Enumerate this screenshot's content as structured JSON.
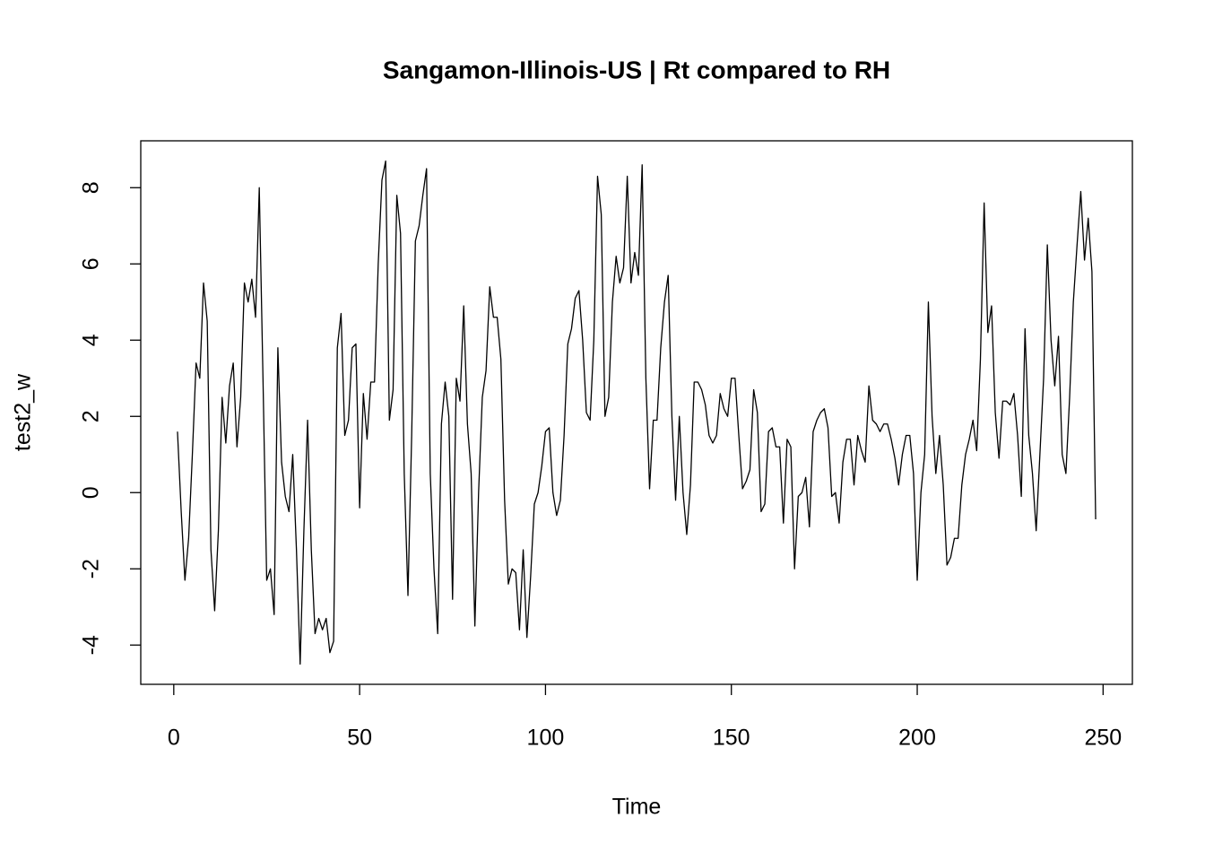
{
  "chart_data": {
    "type": "line",
    "title": "Sangamon-Illinois-US | Rt compared to RH",
    "xlabel": "Time",
    "ylabel": "test2_w",
    "color": "#000000",
    "x": [
      1,
      2,
      3,
      4,
      5,
      6,
      7,
      8,
      9,
      10,
      11,
      12,
      13,
      14,
      15,
      16,
      17,
      18,
      19,
      20,
      21,
      22,
      23,
      24,
      25,
      26,
      27,
      28,
      29,
      30,
      31,
      32,
      33,
      34,
      35,
      36,
      37,
      38,
      39,
      40,
      41,
      42,
      43,
      44,
      45,
      46,
      47,
      48,
      49,
      50,
      51,
      52,
      53,
      54,
      55,
      56,
      57,
      58,
      59,
      60,
      61,
      62,
      63,
      64,
      65,
      66,
      67,
      68,
      69,
      70,
      71,
      72,
      73,
      74,
      75,
      76,
      77,
      78,
      79,
      80,
      81,
      82,
      83,
      84,
      85,
      86,
      87,
      88,
      89,
      90,
      91,
      92,
      93,
      94,
      95,
      96,
      97,
      98,
      99,
      100,
      101,
      102,
      103,
      104,
      105,
      106,
      107,
      108,
      109,
      110,
      111,
      112,
      113,
      114,
      115,
      116,
      117,
      118,
      119,
      120,
      121,
      122,
      123,
      124,
      125,
      126,
      127,
      128,
      129,
      130,
      131,
      132,
      133,
      134,
      135,
      136,
      137,
      138,
      139,
      140,
      141,
      142,
      143,
      144,
      145,
      146,
      147,
      148,
      149,
      150,
      151,
      152,
      153,
      154,
      155,
      156,
      157,
      158,
      159,
      160,
      161,
      162,
      163,
      164,
      165,
      166,
      167,
      168,
      169,
      170,
      171,
      172,
      173,
      174,
      175,
      176,
      177,
      178,
      179,
      180,
      181,
      182,
      183,
      184,
      185,
      186,
      187,
      188,
      189,
      190,
      191,
      192,
      193,
      194,
      195,
      196,
      197,
      198,
      199,
      200,
      201,
      202,
      203,
      204,
      205,
      206,
      207,
      208,
      209,
      210,
      211,
      212,
      213,
      214,
      215,
      216,
      217,
      218,
      219,
      220,
      221,
      222,
      223,
      224,
      225,
      226,
      227,
      228,
      229,
      230,
      231,
      232,
      233,
      234,
      235,
      236,
      237,
      238,
      239,
      240,
      241,
      242,
      243,
      244,
      245,
      246,
      247,
      248
    ],
    "values": [
      1.6,
      -0.5,
      -2.3,
      -1.2,
      1.0,
      3.4,
      3.0,
      5.5,
      4.5,
      -1.5,
      -3.1,
      -1.0,
      2.5,
      1.3,
      2.8,
      3.4,
      1.2,
      2.5,
      5.5,
      5.0,
      5.6,
      4.6,
      8.0,
      3.0,
      -2.3,
      -2.0,
      -3.2,
      3.8,
      0.8,
      -0.1,
      -0.5,
      1.0,
      -1.5,
      -4.5,
      -1.0,
      1.9,
      -1.5,
      -3.7,
      -3.3,
      -3.6,
      -3.3,
      -4.2,
      -3.9,
      3.8,
      4.7,
      1.5,
      1.9,
      3.8,
      3.9,
      -0.4,
      2.6,
      1.4,
      2.9,
      2.9,
      6.0,
      8.2,
      8.7,
      1.9,
      2.7,
      7.8,
      6.8,
      0.5,
      -2.7,
      1.5,
      6.6,
      7.0,
      7.8,
      8.5,
      0.5,
      -2.0,
      -3.7,
      1.8,
      2.9,
      2.0,
      -2.8,
      3.0,
      2.4,
      4.9,
      1.8,
      0.5,
      -3.5,
      0.0,
      2.5,
      3.2,
      5.4,
      4.6,
      4.6,
      3.5,
      -0.2,
      -2.4,
      -2.0,
      -2.1,
      -3.6,
      -1.5,
      -3.8,
      -2.2,
      -0.3,
      0.0,
      0.7,
      1.6,
      1.7,
      0.0,
      -0.6,
      -0.2,
      1.5,
      3.9,
      4.3,
      5.1,
      5.3,
      4.0,
      2.1,
      1.9,
      4.0,
      8.3,
      7.3,
      2.0,
      2.5,
      5.0,
      6.2,
      5.5,
      5.9,
      8.3,
      5.5,
      6.3,
      5.7,
      8.6,
      3.0,
      0.1,
      1.9,
      1.9,
      3.8,
      5.0,
      5.7,
      2.0,
      -0.2,
      2.0,
      0.0,
      -1.1,
      0.2,
      2.9,
      2.9,
      2.7,
      2.3,
      1.5,
      1.3,
      1.5,
      2.6,
      2.2,
      2.0,
      3.0,
      3.0,
      1.5,
      0.1,
      0.3,
      0.6,
      2.7,
      2.1,
      -0.5,
      -0.3,
      1.6,
      1.7,
      1.2,
      1.2,
      -0.8,
      1.4,
      1.2,
      -2.0,
      -0.1,
      0.0,
      0.4,
      -0.9,
      1.6,
      1.9,
      2.1,
      2.2,
      1.7,
      -0.1,
      0.0,
      -0.8,
      0.8,
      1.4,
      1.4,
      0.2,
      1.5,
      1.1,
      0.8,
      2.8,
      1.9,
      1.8,
      1.6,
      1.8,
      1.8,
      1.4,
      0.9,
      0.2,
      1.0,
      1.5,
      1.5,
      0.5,
      -2.3,
      0.0,
      1.0,
      5.0,
      2.0,
      0.5,
      1.5,
      0.2,
      -1.9,
      -1.7,
      -1.2,
      -1.2,
      0.2,
      1.0,
      1.4,
      1.9,
      1.1,
      3.5,
      7.6,
      4.2,
      4.9,
      2.1,
      0.9,
      2.4,
      2.4,
      2.3,
      2.6,
      1.5,
      -0.1,
      4.3,
      1.5,
      0.5,
      -1.0,
      1.0,
      3.0,
      6.5,
      4.0,
      2.8,
      4.1,
      1.0,
      0.5,
      2.5,
      5.0,
      6.5,
      7.9,
      6.1,
      7.2,
      5.8,
      -0.7
    ],
    "xlim": [
      -8.88,
      257.88
    ],
    "ylim": [
      -5.03,
      9.23
    ],
    "xticks": [
      0,
      50,
      100,
      150,
      200,
      250
    ],
    "yticks": [
      -4,
      -2,
      0,
      2,
      4,
      6,
      8
    ],
    "grid": false
  }
}
